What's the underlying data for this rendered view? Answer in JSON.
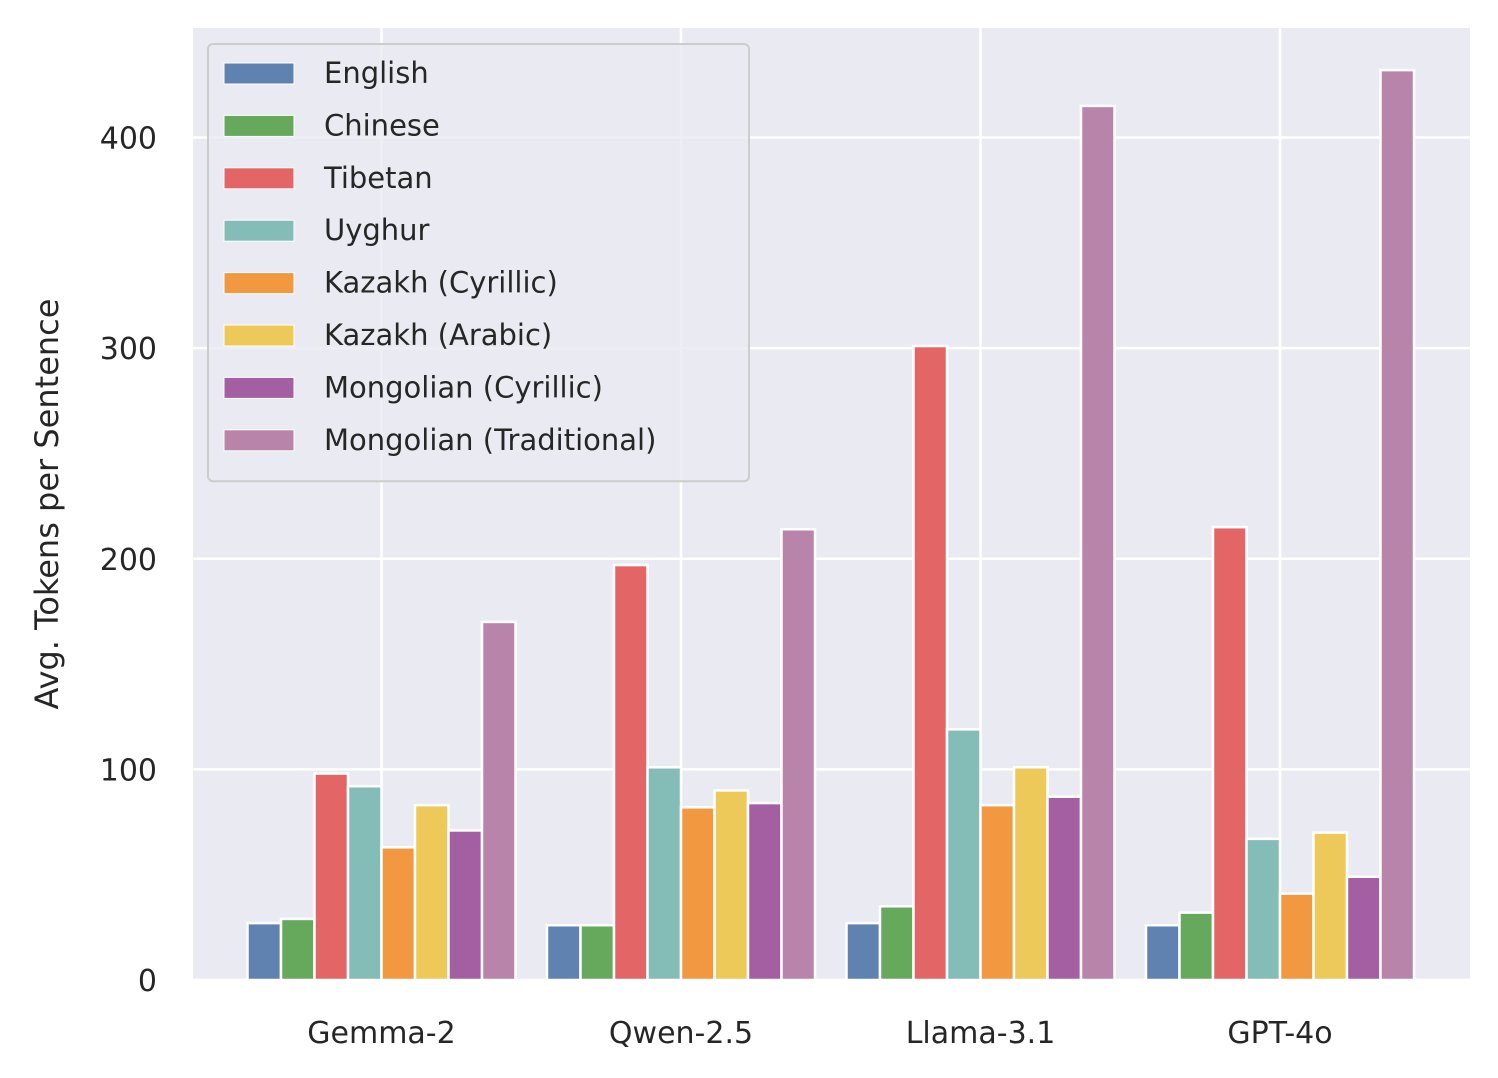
{
  "chart_data": {
    "type": "bar",
    "title": "",
    "xlabel": "",
    "ylabel": "Avg. Tokens per Sentence",
    "ylim": [
      0,
      452
    ],
    "yticks": [
      0,
      100,
      200,
      300,
      400
    ],
    "grid": true,
    "legend_position": "top-left",
    "categories": [
      "Gemma-2",
      "Qwen-2.5",
      "Llama-3.1",
      "GPT-4o"
    ],
    "series": [
      {
        "name": "English",
        "color": "#5f82b0",
        "values": [
          27,
          26,
          27,
          26
        ]
      },
      {
        "name": "Chinese",
        "color": "#66a95d",
        "values": [
          29,
          26,
          35,
          32
        ]
      },
      {
        "name": "Tibetan",
        "color": "#e36566",
        "values": [
          98,
          197,
          301,
          215
        ]
      },
      {
        "name": "Uyghur",
        "color": "#84bcb8",
        "values": [
          92,
          101,
          119,
          67
        ]
      },
      {
        "name": "Kazakh (Cyrillic)",
        "color": "#f29841",
        "values": [
          63,
          82,
          83,
          41
        ]
      },
      {
        "name": "Kazakh (Arabic)",
        "color": "#edc959",
        "values": [
          83,
          90,
          101,
          70
        ]
      },
      {
        "name": "Mongolian (Cyrillic)",
        "color": "#a45ea2",
        "values": [
          71,
          84,
          87,
          49
        ]
      },
      {
        "name": "Mongolian (Traditional)",
        "color": "#b984a9",
        "values": [
          170,
          214,
          415,
          432
        ]
      }
    ]
  }
}
